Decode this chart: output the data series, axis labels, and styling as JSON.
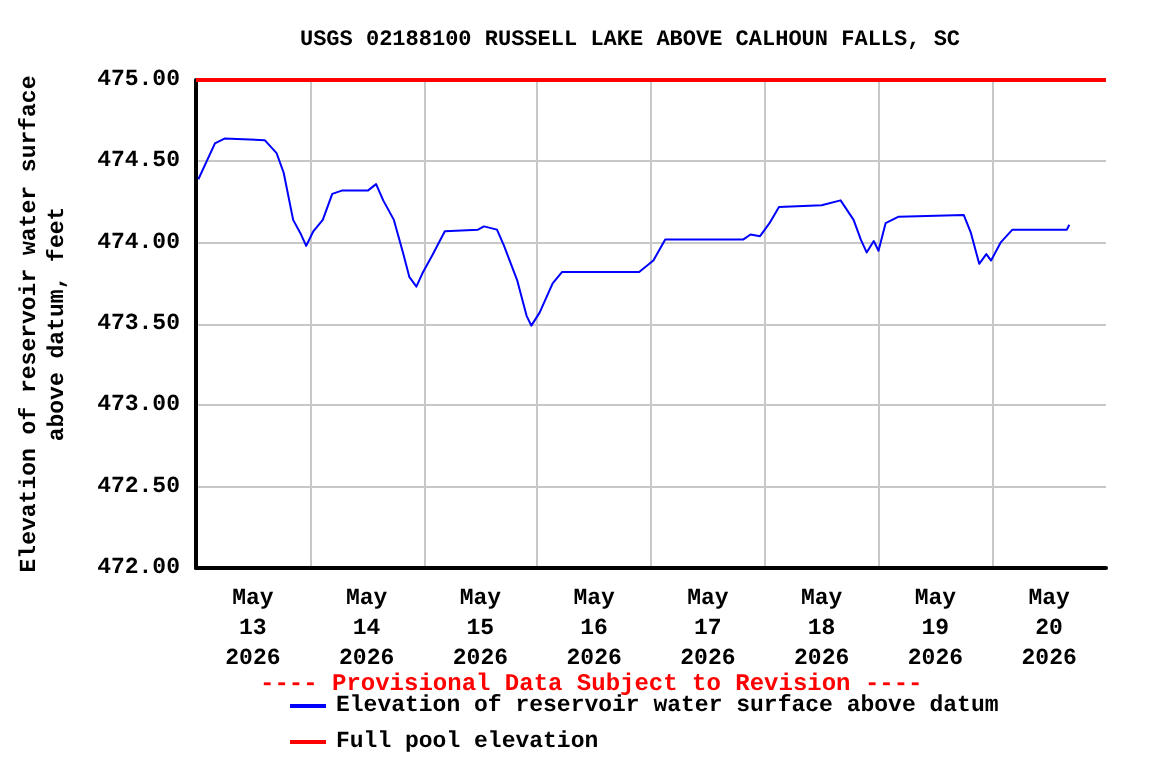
{
  "chart_data": {
    "type": "line",
    "title": "USGS 02188100 RUSSELL LAKE ABOVE CALHOUN FALLS, SC",
    "ylabel": "Elevation of reservoir water surface\nabove datum, feet",
    "annotations": [
      "---- Provisional Data Subject to Revision ----"
    ],
    "xlim": [
      "2026-05-13T00:00",
      "2026-05-21T00:00"
    ],
    "xticks": [
      {
        "value": "2026-05-13T12:00",
        "label": "May\n13\n2026"
      },
      {
        "value": "2026-05-14T00:00",
        "label": null
      },
      {
        "value": "2026-05-14T12:00",
        "label": "May\n14\n2026"
      },
      {
        "value": "2026-05-15T00:00",
        "label": null
      },
      {
        "value": "2026-05-15T12:00",
        "label": "May\n15\n2026"
      },
      {
        "value": "2026-05-16T00:00",
        "label": null
      },
      {
        "value": "2026-05-16T12:00",
        "label": "May\n16\n2026"
      },
      {
        "value": "2026-05-17T00:00",
        "label": null
      },
      {
        "value": "2026-05-17T12:00",
        "label": "May\n17\n2026"
      },
      {
        "value": "2026-05-18T00:00",
        "label": null
      },
      {
        "value": "2026-05-18T12:00",
        "label": "May\n18\n2026"
      },
      {
        "value": "2026-05-19T00:00",
        "label": null
      },
      {
        "value": "2026-05-19T12:00",
        "label": "May\n19\n2026"
      },
      {
        "value": "2026-05-20T00:00",
        "label": null
      },
      {
        "value": "2026-05-20T12:00",
        "label": "May\n20\n2026"
      }
    ],
    "ylim": [
      472,
      475
    ],
    "yticks": [
      {
        "value": 472,
        "label": "472.00"
      },
      {
        "value": 472.5,
        "label": "472.50"
      },
      {
        "value": 473,
        "label": "473.00"
      },
      {
        "value": 473.5,
        "label": "473.50"
      },
      {
        "value": 474,
        "label": "474.00"
      },
      {
        "value": 474.5,
        "label": "474.50"
      },
      {
        "value": 475,
        "label": "475.00"
      }
    ],
    "grid": true,
    "legend": "bottom",
    "marker": "none",
    "line_style": "solid",
    "ref_lines": [
      {
        "axis": "y",
        "value": 475,
        "label": "Full pool elevation",
        "color": "#ff0000"
      }
    ],
    "series": [
      {
        "name": "Elevation of reservoir water surface above datum",
        "color": "#0000ff",
        "x": [
          "2026-05-13T00:30",
          "2026-05-13T04:00",
          "2026-05-13T06:00",
          "2026-05-13T14:30",
          "2026-05-13T17:00",
          "2026-05-13T18:30",
          "2026-05-13T20:30",
          "2026-05-13T22:00",
          "2026-05-13T23:15",
          "2026-05-14T00:45",
          "2026-05-14T02:45",
          "2026-05-14T04:45",
          "2026-05-14T06:45",
          "2026-05-14T12:15",
          "2026-05-14T14:00",
          "2026-05-14T15:30",
          "2026-05-14T17:45",
          "2026-05-14T19:45",
          "2026-05-14T21:00",
          "2026-05-14T22:30",
          "2026-05-14T23:45",
          "2026-05-15T02:00",
          "2026-05-15T04:30",
          "2026-05-15T11:30",
          "2026-05-15T12:45",
          "2026-05-15T15:30",
          "2026-05-15T17:00",
          "2026-05-15T19:45",
          "2026-05-15T21:45",
          "2026-05-15T22:45",
          "2026-05-16T00:30",
          "2026-05-16T03:15",
          "2026-05-16T05:15",
          "2026-05-16T21:30",
          "2026-05-17T00:30",
          "2026-05-17T03:00",
          "2026-05-17T19:30",
          "2026-05-17T21:00",
          "2026-05-17T23:00",
          "2026-05-18T01:00",
          "2026-05-18T03:00",
          "2026-05-18T12:00",
          "2026-05-18T16:00",
          "2026-05-18T18:45",
          "2026-05-18T20:15",
          "2026-05-18T21:30",
          "2026-05-18T23:00",
          "2026-05-19T00:00",
          "2026-05-19T01:30",
          "2026-05-19T04:15",
          "2026-05-19T18:00",
          "2026-05-19T19:30",
          "2026-05-19T21:15",
          "2026-05-19T22:45",
          "2026-05-19T23:45",
          "2026-05-20T01:45",
          "2026-05-20T04:15",
          "2026-05-20T15:45",
          "2026-05-20T16:15"
        ],
        "values": [
          474.39,
          474.61,
          474.64,
          474.63,
          474.55,
          474.43,
          474.14,
          474.06,
          473.98,
          474.07,
          474.14,
          474.3,
          474.32,
          474.32,
          474.36,
          474.26,
          474.14,
          473.93,
          473.79,
          473.73,
          473.81,
          473.93,
          474.07,
          474.08,
          474.1,
          474.08,
          473.98,
          473.77,
          473.55,
          473.49,
          473.57,
          473.75,
          473.82,
          473.82,
          473.89,
          474.02,
          474.02,
          474.05,
          474.04,
          474.12,
          474.22,
          474.23,
          474.26,
          474.14,
          474.02,
          473.94,
          474.01,
          473.95,
          474.12,
          474.16,
          474.17,
          474.06,
          473.87,
          473.93,
          473.89,
          474.0,
          474.08,
          474.08,
          474.11
        ]
      }
    ]
  }
}
